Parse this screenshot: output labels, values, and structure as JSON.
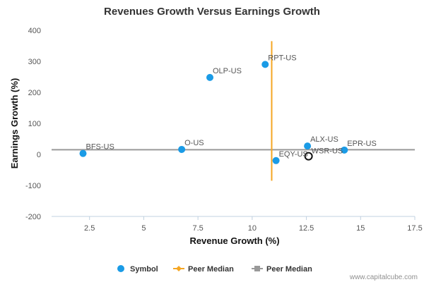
{
  "chart_data": {
    "type": "scatter",
    "title": "Revenues Growth Versus Earnings Growth",
    "xlabel": "Revenue Growth (%)",
    "ylabel": "Earnings Growth (%)",
    "xlim": [
      0.75,
      17.5
    ],
    "ylim": [
      -200,
      400
    ],
    "x_ticks": [
      2.5,
      5,
      7.5,
      10,
      12.5,
      15,
      17.5
    ],
    "x_tick_labels": [
      "2.5",
      "5",
      "7.5",
      "10",
      "12.5",
      "15",
      "17.5"
    ],
    "y_ticks": [
      -200,
      -100,
      0,
      100,
      200,
      300,
      400
    ],
    "y_tick_labels": [
      "-200",
      "-100",
      "0",
      "100",
      "200",
      "300",
      "400"
    ],
    "grid": false,
    "points": [
      {
        "label": "BFS-US",
        "x": 2.2,
        "y": 3
      },
      {
        "label": "O-US",
        "x": 6.75,
        "y": 16
      },
      {
        "label": "OLP-US",
        "x": 8.05,
        "y": 248
      },
      {
        "label": "RPT-US",
        "x": 10.6,
        "y": 290
      },
      {
        "label": "EQY-US",
        "x": 11.1,
        "y": -20
      },
      {
        "label": "ALX-US",
        "x": 12.55,
        "y": 27
      },
      {
        "label": "EPR-US",
        "x": 14.25,
        "y": 14
      }
    ],
    "highlight_point": {
      "label": "WSR-US",
      "x": 12.6,
      "y": -6
    },
    "peer_median_revenue": {
      "x": 10.9,
      "y_range": [
        -85,
        365
      ]
    },
    "peer_median_earnings": {
      "y": 15
    },
    "legend": [
      {
        "name": "Symbol",
        "color": "#1a9be6",
        "marker": "circle"
      },
      {
        "name": "Peer Median",
        "color": "#f5a623",
        "marker": "line-diamond"
      },
      {
        "name": "Peer Median",
        "color": "#999999",
        "marker": "line-square"
      }
    ],
    "legend_position": "bottom"
  },
  "colors": {
    "symbol": "#1a9be6",
    "peer_median_vertical": "#f5a623",
    "peer_median_horizontal": "#999999",
    "highlight": "#111111"
  },
  "credit": "www.capitalcube.com"
}
